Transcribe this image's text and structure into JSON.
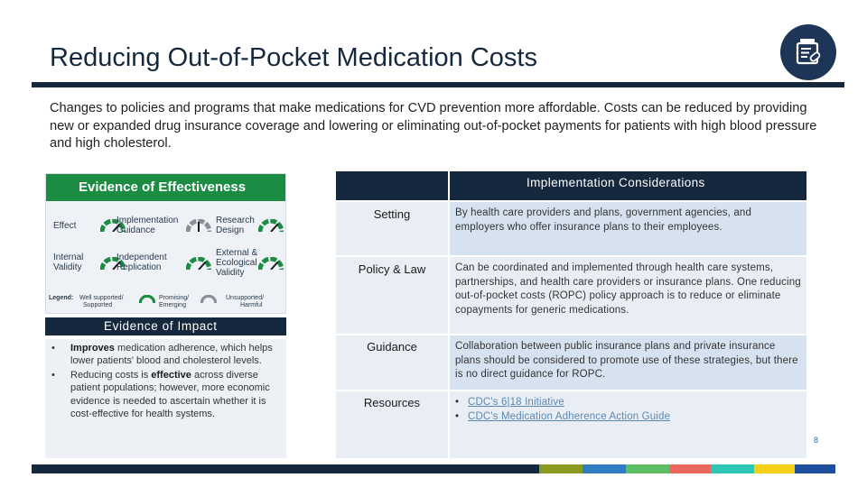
{
  "title": "Reducing Out-of-Pocket Medication Costs",
  "intro": "Changes to policies and programs that make medications for CVD prevention more affordable. Costs can be reduced by providing new or expanded drug insurance coverage and lowering or eliminating out-of-pocket payments for patients with high blood pressure and high cholesterol.",
  "logo_icon": "medication-bottle-icon",
  "effectiveness": {
    "header": "Evidence of Effectiveness",
    "labels": {
      "effect": "Effect",
      "impl_l1": "Implementation",
      "impl_l2": "Guidance",
      "research_l1": "Research",
      "research_l2": "Design",
      "internal_l1": "Internal",
      "internal_l2": "Validity",
      "indep_l1": "Independent",
      "indep_l2": "Replication",
      "external_l1": "External &",
      "external_l2": "Ecological",
      "external_l3": "Validity"
    },
    "legend": {
      "title": "Legend:",
      "ws_l1": "Well supported/",
      "ws_l2": "Supported",
      "pe_l1": "Promising/",
      "pe_l2": "Emerging",
      "uh_l1": "Unsupported/",
      "uh_l2": "Harmful"
    },
    "colors": {
      "supported": "#1d8c43",
      "emerging": "#8a8f96",
      "header": "#1d8c43"
    }
  },
  "impact": {
    "header": "Evidence of Impact",
    "items": [
      {
        "bold": "Improves",
        "text": " medication adherence, which helps lower patients' blood and cholesterol levels."
      },
      {
        "pre": "Reducing costs is ",
        "bold": "effective",
        "text": " across diverse patient populations; however, more economic evidence is needed to ascertain whether it is cost-effective for health systems."
      }
    ]
  },
  "implementation": {
    "header": "Implementation Considerations",
    "rows": [
      {
        "key": "Setting",
        "value": "By health care providers and plans, government agencies, and employers who offer insurance plans to their employees."
      },
      {
        "key": "Policy & Law",
        "value": "Can be coordinated and implemented through health care systems, partnerships, and health care providers or insurance plans. One reducing out-of-pocket costs (ROPC) policy approach is to reduce or eliminate copayments for generic medications."
      },
      {
        "key": "Guidance",
        "value": "Collaboration between public insurance plans and private insurance plans should be considered to promote use of these strategies, but there is no direct guidance for ROPC."
      },
      {
        "key": "Resources",
        "links": [
          "CDC's 6|18 Initiative",
          "CDC's Medication Adherence Action Guide"
        ]
      }
    ]
  },
  "page_number": "8",
  "bottom_bar_colors": [
    "#16283d",
    "#8a9a1f",
    "#2f7ec1",
    "#5cbf63",
    "#e8675a",
    "#2ec7b8",
    "#f5d016",
    "#1f4f9c"
  ]
}
